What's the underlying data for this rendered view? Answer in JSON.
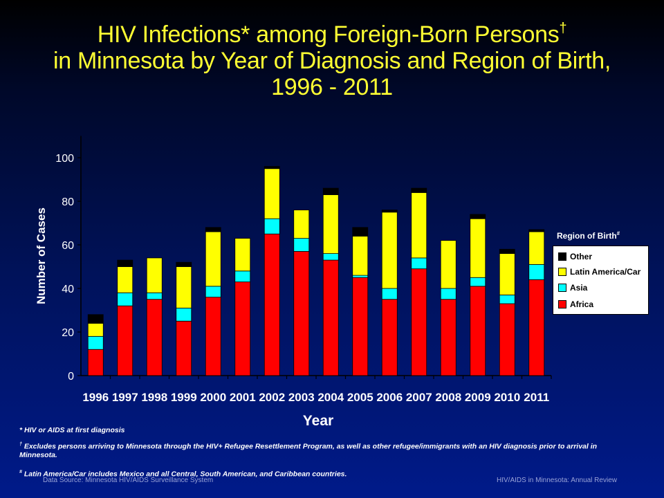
{
  "title": {
    "line1": "HIV Infections* among Foreign-Born Persons",
    "line1_mark": "†",
    "line2": "in Minnesota by Year of Diagnosis and Region of Birth,",
    "line3": "1996 - 2011"
  },
  "legend": {
    "title": "Region of Birth",
    "title_mark": "#"
  },
  "footnotes": {
    "star": "* HIV or AIDS at first diagnosis",
    "dagger_mark": "†",
    "dagger": " Excludes persons arriving to Minnesota through the HIV+ Refugee Resettlement Program, as well as other refugee/immigrants with an HIV diagnosis prior to arrival in Minnesota.",
    "hash_mark": "#",
    "hash": " Latin America/Car includes Mexico and all Central, South American, and Caribbean countries."
  },
  "source": {
    "left": "Data Source: Minnesota HIV/AIDS Surveillance System",
    "right": "HIV/AIDS in Minnesota: Annual Review"
  },
  "colors": {
    "Africa": "#ff0000",
    "Asia": "#00ffff",
    "Latin America/Car": "#ffff00",
    "Other": "#000000"
  },
  "chart_data": {
    "type": "bar",
    "stacked": true,
    "xlabel": "Year",
    "ylabel": "Number of Cases",
    "ylim": [
      0,
      110
    ],
    "yticks": [
      0,
      20,
      40,
      60,
      80,
      100
    ],
    "grid": false,
    "legend_position": "right",
    "categories": [
      "1996",
      "1997",
      "1998",
      "1999",
      "2000",
      "2001",
      "2002",
      "2003",
      "2004",
      "2005",
      "2006",
      "2007",
      "2008",
      "2009",
      "2010",
      "2011"
    ],
    "series": [
      {
        "name": "Africa",
        "values": [
          12,
          32,
          35,
          25,
          36,
          43,
          65,
          57,
          53,
          45,
          35,
          49,
          35,
          41,
          33,
          44
        ]
      },
      {
        "name": "Asia",
        "values": [
          6,
          6,
          3,
          6,
          5,
          5,
          7,
          6,
          3,
          1,
          5,
          5,
          5,
          4,
          4,
          7
        ]
      },
      {
        "name": "Latin America/Car",
        "values": [
          6,
          12,
          16,
          19,
          25,
          15,
          23,
          13,
          27,
          18,
          35,
          30,
          22,
          27,
          19,
          15
        ]
      },
      {
        "name": "Other",
        "values": [
          4,
          3,
          0,
          2,
          2,
          0,
          1,
          0,
          3,
          4,
          1,
          2,
          0,
          2,
          2,
          1
        ]
      }
    ]
  }
}
